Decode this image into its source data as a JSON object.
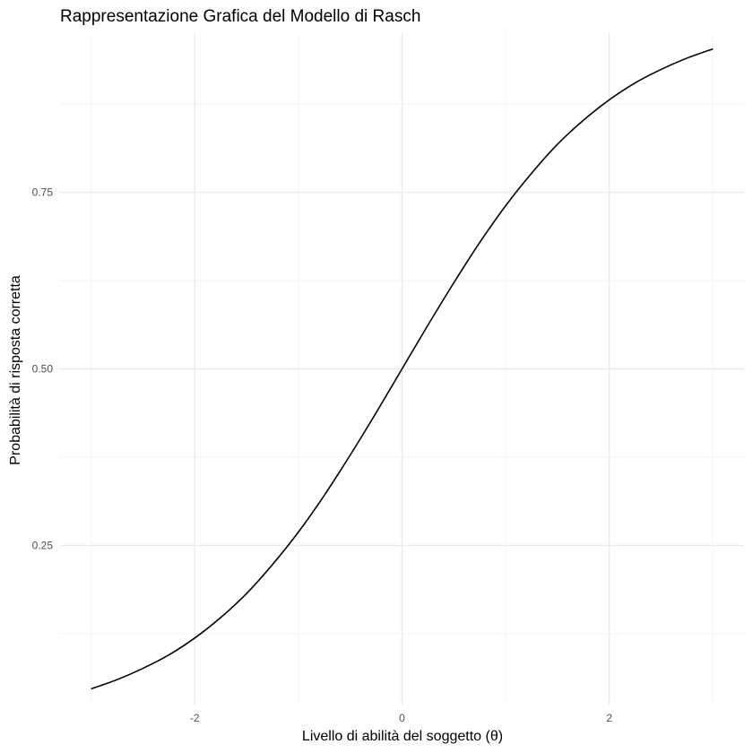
{
  "chart_data": {
    "type": "line",
    "title": "Rappresentazione Grafica del Modello di Rasch",
    "xlabel": "Livello di abilità del soggetto (θ)",
    "ylabel": "Probabilità di risposta corretta",
    "xlim": [
      -3.3,
      3.3
    ],
    "ylim": [
      0.0247,
      0.9753
    ],
    "x_ticks": [
      -2,
      0,
      2
    ],
    "x_tick_labels": [
      "-2",
      "0",
      "2"
    ],
    "y_ticks": [
      0.25,
      0.5,
      0.75
    ],
    "y_tick_labels": [
      "0.25",
      "0.50",
      "0.75"
    ],
    "x_minor_ticks": [
      -3,
      -1,
      1,
      3
    ],
    "y_minor_ticks": [
      0.125,
      0.375,
      0.625,
      0.875
    ],
    "grid": true,
    "legend": "none",
    "series": [
      {
        "color": "#000000",
        "x": [
          -3,
          -2.75,
          -2.5,
          -2.25,
          -2,
          -1.75,
          -1.5,
          -1.25,
          -1,
          -0.75,
          -0.5,
          -0.25,
          0,
          0.25,
          0.5,
          0.75,
          1,
          1.25,
          1.5,
          1.75,
          2,
          2.25,
          2.5,
          2.75,
          3
        ],
        "y": [
          0.047,
          0.06,
          0.076,
          0.095,
          0.119,
          0.148,
          0.182,
          0.223,
          0.269,
          0.321,
          0.378,
          0.438,
          0.5,
          0.562,
          0.622,
          0.679,
          0.731,
          0.777,
          0.818,
          0.852,
          0.881,
          0.905,
          0.924,
          0.94,
          0.953
        ]
      }
    ]
  }
}
